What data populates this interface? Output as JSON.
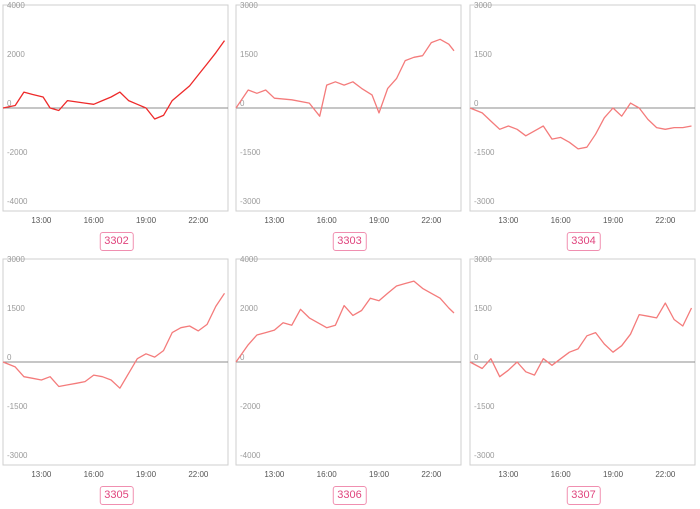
{
  "colors": {
    "axis_frame": "#cfcfcf",
    "zero_line": "#8c8c8c",
    "series_dark": "#ee2a2a",
    "series_light": "#f47b7b",
    "tag_border": "#f08fb0",
    "tag_text": "#e0457e"
  },
  "chart_data": [
    {
      "type": "line",
      "id_label": "3302",
      "x_ticks": [
        "13:00",
        "16:00",
        "19:00",
        "22:00"
      ],
      "x_tick_hours": [
        13,
        16,
        19,
        22
      ],
      "xlim": [
        10.8,
        23.7
      ],
      "ylim": [
        -4200,
        4200
      ],
      "y_ticks": [
        4000,
        2000,
        0,
        -2000,
        -4000
      ],
      "y_tick_labels": [
        "4000",
        "2000",
        "0",
        "-2000",
        "-4000"
      ],
      "color": "#ee2a2a",
      "x": [
        10.8,
        11.5,
        12.0,
        12.5,
        13.1,
        13.5,
        14.0,
        14.5,
        15.0,
        15.5,
        16.0,
        16.5,
        17.0,
        17.5,
        18.0,
        18.5,
        19.0,
        19.5,
        20.0,
        20.5,
        21.0,
        21.5,
        22.0,
        22.5,
        23.0,
        23.5
      ],
      "y": [
        0,
        100,
        650,
        550,
        450,
        0,
        -100,
        300,
        250,
        200,
        150,
        300,
        450,
        650,
        300,
        150,
        0,
        -450,
        -300,
        300,
        600,
        900,
        1350,
        1800,
        2250,
        2750
      ]
    },
    {
      "type": "line",
      "id_label": "3303",
      "x_ticks": [
        "13:00",
        "16:00",
        "19:00",
        "22:00"
      ],
      "x_tick_hours": [
        13,
        16,
        19,
        22
      ],
      "xlim": [
        10.8,
        23.7
      ],
      "ylim": [
        -3150,
        3150
      ],
      "y_ticks": [
        3000,
        1500,
        0,
        -1500,
        -3000
      ],
      "y_tick_labels": [
        "3000",
        "1500",
        "0",
        "-1500",
        "-3000"
      ],
      "color": "#f47b7b",
      "x": [
        10.8,
        11.5,
        12.0,
        12.5,
        13.0,
        14.0,
        15.0,
        15.6,
        16.0,
        16.5,
        17.0,
        17.5,
        18.0,
        18.6,
        19.0,
        19.5,
        20.0,
        20.5,
        21.0,
        21.5,
        22.0,
        22.5,
        23.0,
        23.3
      ],
      "y": [
        0,
        550,
        450,
        550,
        300,
        250,
        150,
        -250,
        700,
        800,
        700,
        800,
        600,
        400,
        -150,
        600,
        900,
        1450,
        1550,
        1600,
        2000,
        2100,
        1950,
        1750
      ]
    },
    {
      "type": "line",
      "id_label": "3304",
      "x_ticks": [
        "13:00",
        "16:00",
        "19:00",
        "22:00"
      ],
      "x_tick_hours": [
        13,
        16,
        19,
        22
      ],
      "xlim": [
        10.8,
        23.7
      ],
      "ylim": [
        -3150,
        3150
      ],
      "y_ticks": [
        3000,
        1500,
        0,
        -1500,
        -3000
      ],
      "y_tick_labels": [
        "3000",
        "1500",
        "0",
        "-1500",
        "-3000"
      ],
      "color": "#f47b7b",
      "x": [
        10.8,
        11.5,
        12.0,
        12.5,
        13.0,
        13.5,
        14.0,
        14.5,
        15.0,
        15.5,
        16.0,
        16.5,
        17.0,
        17.5,
        18.0,
        18.5,
        19.0,
        19.5,
        20.0,
        20.5,
        21.0,
        21.5,
        22.0,
        22.5,
        23.0,
        23.5
      ],
      "y": [
        0,
        -150,
        -400,
        -650,
        -550,
        -650,
        -850,
        -700,
        -550,
        -950,
        -900,
        -1050,
        -1250,
        -1200,
        -800,
        -300,
        0,
        -250,
        150,
        0,
        -350,
        -600,
        -650,
        -600,
        -600,
        -550
      ]
    },
    {
      "type": "line",
      "id_label": "3305",
      "x_ticks": [
        "13:00",
        "16:00",
        "19:00",
        "22:00"
      ],
      "x_tick_hours": [
        13,
        16,
        19,
        22
      ],
      "xlim": [
        10.8,
        23.7
      ],
      "ylim": [
        -3150,
        3150
      ],
      "y_ticks": [
        3000,
        1500,
        0,
        -1500,
        -3000
      ],
      "y_tick_labels": [
        "3000",
        "1500",
        "0",
        "-1500",
        "-3000"
      ],
      "color": "#f47b7b",
      "x": [
        10.8,
        11.5,
        12.0,
        12.5,
        13.0,
        13.5,
        14.0,
        14.5,
        15.0,
        15.5,
        16.0,
        16.5,
        17.0,
        17.5,
        18.0,
        18.5,
        19.0,
        19.5,
        20.0,
        20.5,
        21.0,
        21.5,
        22.0,
        22.5,
        23.0,
        23.5
      ],
      "y": [
        0,
        -150,
        -450,
        -500,
        -550,
        -450,
        -750,
        -700,
        -650,
        -600,
        -400,
        -450,
        -550,
        -800,
        -350,
        100,
        250,
        150,
        350,
        900,
        1050,
        1100,
        950,
        1150,
        1700,
        2100
      ]
    },
    {
      "type": "line",
      "id_label": "3306",
      "x_ticks": [
        "13:00",
        "16:00",
        "19:00",
        "22:00"
      ],
      "x_tick_hours": [
        13,
        16,
        19,
        22
      ],
      "xlim": [
        10.8,
        23.7
      ],
      "ylim": [
        -4200,
        4200
      ],
      "y_ticks": [
        4000,
        2000,
        0,
        -2000,
        -4000
      ],
      "y_tick_labels": [
        "4000",
        "2000",
        "0",
        "-2000",
        "-4000"
      ],
      "color": "#f47b7b",
      "x": [
        10.8,
        11.5,
        12.0,
        12.5,
        13.0,
        13.5,
        14.0,
        14.5,
        15.0,
        15.5,
        16.0,
        16.5,
        17.0,
        17.5,
        18.0,
        18.5,
        19.0,
        19.5,
        20.0,
        20.5,
        21.0,
        21.5,
        22.0,
        22.5,
        23.0,
        23.3
      ],
      "y": [
        0,
        700,
        1100,
        1200,
        1300,
        1600,
        1500,
        2150,
        1800,
        1600,
        1400,
        1500,
        2300,
        1900,
        2100,
        2600,
        2500,
        2800,
        3100,
        3200,
        3300,
        3000,
        2800,
        2600,
        2200,
        2000
      ]
    },
    {
      "type": "line",
      "id_label": "3307",
      "x_ticks": [
        "13:00",
        "16:00",
        "19:00",
        "22:00"
      ],
      "x_tick_hours": [
        13,
        16,
        19,
        22
      ],
      "xlim": [
        10.8,
        23.7
      ],
      "ylim": [
        -3150,
        3150
      ],
      "y_ticks": [
        3000,
        1500,
        0,
        -1500,
        -3000
      ],
      "y_tick_labels": [
        "3000",
        "1500",
        "0",
        "-1500",
        "-3000"
      ],
      "color": "#f47b7b",
      "x": [
        10.8,
        11.5,
        12.0,
        12.5,
        13.0,
        13.5,
        14.0,
        14.5,
        15.0,
        15.5,
        16.0,
        16.5,
        17.0,
        17.5,
        18.0,
        18.5,
        19.0,
        19.5,
        20.0,
        20.5,
        21.0,
        21.5,
        22.0,
        22.5,
        23.0,
        23.5
      ],
      "y": [
        0,
        -200,
        100,
        -450,
        -250,
        0,
        -300,
        -400,
        100,
        -100,
        100,
        300,
        400,
        800,
        900,
        550,
        300,
        500,
        850,
        1450,
        1400,
        1350,
        1800,
        1300,
        1100,
        1650
      ]
    }
  ]
}
